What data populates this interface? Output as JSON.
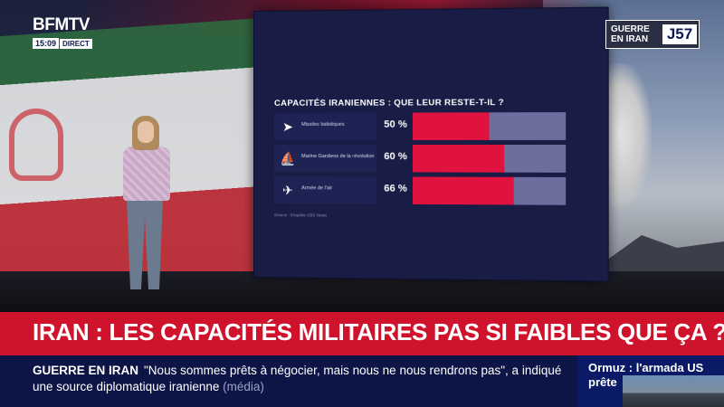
{
  "brand": {
    "logo": "BFMTV",
    "time": "15:09",
    "live": "DIRECT"
  },
  "corner_tag": {
    "topic_line1": "GUERRE",
    "topic_line2": "EN IRAN",
    "day": "J57"
  },
  "screen": {
    "title": "CAPACITÉS IRANIENNES : QUE LEUR RESTE-T-IL ?",
    "source": "Source : Enquête CBS News",
    "rows": [
      {
        "icon": "missile-icon",
        "label": "Missiles balistiques",
        "percent_text": "50 %",
        "value": 50
      },
      {
        "icon": "boat-icon",
        "label": "Marine Gardiens de la révolution",
        "percent_text": "60 %",
        "value": 60
      },
      {
        "icon": "jet-icon",
        "label": "Armée de l'air",
        "percent_text": "66 %",
        "value": 66
      }
    ],
    "colors": {
      "fill": "#e0123f",
      "track": "#6c6e9e",
      "panel": "#191c44"
    }
  },
  "headline": "IRAN : LES CAPACITÉS MILITAIRES PAS SI FAIBLES QUE ÇA ?",
  "ticker": {
    "label": "GUERRE EN IRAN",
    "text": "\"Nous sommes prêts à négocier, mais nous ne nous rendrons pas\", a indiqué une source diplomatique iranienne",
    "tag": "(média)"
  },
  "side_promo": {
    "text": "Ormuz : l'armada US prête"
  },
  "colors": {
    "headline_bg": "#d0132d",
    "ticker_bg": "#0d1546"
  }
}
